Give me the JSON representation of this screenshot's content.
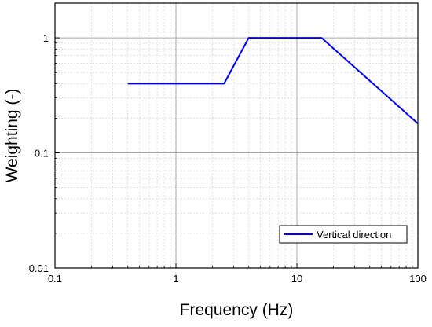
{
  "chart_data": {
    "type": "line",
    "title": "",
    "xlabel": "Frequency (Hz)",
    "ylabel": "Weighting (-)",
    "x_scale": "log",
    "y_scale": "log",
    "xlim": [
      0.1,
      100
    ],
    "ylim": [
      0.01,
      2
    ],
    "x_ticks": [
      {
        "value": 0.1,
        "label": "0.1"
      },
      {
        "value": 1,
        "label": "1"
      },
      {
        "value": 10,
        "label": "10"
      },
      {
        "value": 100,
        "label": "100"
      }
    ],
    "y_ticks": [
      {
        "value": 0.01,
        "label": "0.01"
      },
      {
        "value": 0.1,
        "label": "0.1"
      },
      {
        "value": 1,
        "label": "1"
      }
    ],
    "grid": {
      "major": true,
      "minor": true
    },
    "legend_position": "bottom-right",
    "series": [
      {
        "name": "Vertical direction",
        "color": "#0000ff",
        "x": [
          0.4,
          2.5,
          4,
          16,
          100
        ],
        "y": [
          0.4,
          0.4,
          1.0,
          1.0,
          0.18
        ]
      }
    ]
  }
}
